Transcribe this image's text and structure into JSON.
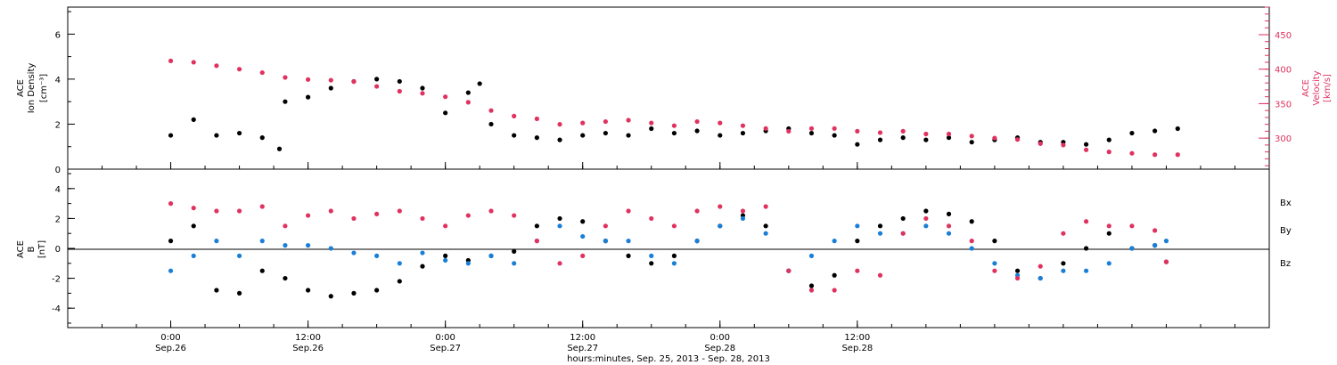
{
  "colors": {
    "density": "#000000",
    "velocity": "#e0325f",
    "bx": "#000000",
    "by": "#1a7fd6",
    "bz": "#e0325f"
  },
  "chart_data": [
    {
      "type": "scatter",
      "panel": "top",
      "ylabel_left": [
        "ACE",
        "Ion Density",
        "[cm⁻³]"
      ],
      "ylabel_right": [
        "ACE",
        "Velocity",
        "[km/s]"
      ],
      "y_left_ticks": [
        "0",
        "2",
        "4",
        "6"
      ],
      "y_right_ticks": [
        "300",
        "350",
        "400",
        "450"
      ],
      "ylim_left": [
        0,
        7.2
      ],
      "ylim_right": [
        255,
        490
      ],
      "series": [
        {
          "key": "density",
          "axis": "left",
          "x": [
            0,
            2,
            4,
            6,
            8,
            9.5,
            10,
            12,
            14,
            16,
            18,
            20,
            22,
            24,
            26,
            27,
            28,
            30,
            32,
            34,
            36,
            38,
            40,
            42,
            44,
            46,
            48,
            50,
            52,
            54,
            56,
            58,
            60,
            62,
            64,
            66,
            68,
            70,
            72,
            74,
            76,
            78,
            80,
            82,
            84,
            86,
            88
          ],
          "y": [
            1.5,
            2.2,
            1.5,
            1.6,
            1.4,
            0.9,
            3.0,
            3.2,
            3.6,
            3.9,
            4.0,
            3.9,
            3.6,
            2.5,
            3.4,
            3.8,
            2.0,
            1.5,
            1.4,
            1.3,
            1.5,
            1.6,
            1.5,
            1.8,
            1.6,
            1.7,
            1.5,
            1.6,
            1.7,
            1.8,
            1.6,
            1.5,
            1.1,
            1.3,
            1.4,
            1.3,
            1.4,
            1.2,
            1.3,
            1.4,
            1.2,
            1.2,
            1.1,
            1.3,
            1.6,
            1.7,
            1.8
          ]
        },
        {
          "key": "velocity",
          "axis": "right",
          "x": [
            0,
            2,
            4,
            6,
            8,
            10,
            12,
            14,
            16,
            18,
            20,
            22,
            24,
            26,
            28,
            30,
            32,
            34,
            36,
            38,
            40,
            42,
            44,
            46,
            48,
            50,
            52,
            54,
            56,
            58,
            60,
            62,
            64,
            66,
            68,
            70,
            72,
            74,
            76,
            78,
            80,
            82,
            84,
            86,
            88
          ],
          "y": [
            412,
            410,
            405,
            400,
            395,
            388,
            385,
            384,
            382,
            375,
            368,
            365,
            360,
            352,
            340,
            332,
            328,
            320,
            322,
            324,
            326,
            322,
            318,
            324,
            322,
            318,
            314,
            310,
            314,
            314,
            310,
            308,
            310,
            306,
            306,
            303,
            300,
            298,
            292,
            290,
            283,
            280,
            278,
            276,
            276
          ]
        }
      ]
    },
    {
      "type": "scatter",
      "panel": "bottom",
      "ylabel_left": [
        "ACE",
        "B",
        "[nT]"
      ],
      "y_left_ticks": [
        "-4",
        "-2",
        "0",
        "2",
        "4"
      ],
      "ylim": [
        -5.3,
        5.3
      ],
      "legend": [
        "Bx",
        "By",
        "Bz"
      ],
      "series": [
        {
          "key": "bx",
          "name": "Bx",
          "x": [
            0,
            2,
            4,
            6,
            8,
            10,
            12,
            14,
            16,
            18,
            20,
            22,
            24,
            26,
            28,
            30,
            32,
            34,
            36,
            38,
            40,
            42,
            44,
            46,
            48,
            50,
            52,
            54,
            56,
            58,
            60,
            62,
            64,
            66,
            68,
            70,
            72,
            74,
            76,
            78,
            80,
            82,
            84,
            86,
            87
          ],
          "y": [
            0.5,
            1.5,
            -2.8,
            -3.0,
            -1.5,
            -2.0,
            -2.8,
            -3.2,
            -3.0,
            -2.8,
            -2.2,
            -1.2,
            -0.5,
            -0.8,
            -0.5,
            -0.2,
            1.5,
            2.0,
            1.8,
            0.5,
            -0.5,
            -1.0,
            -0.5,
            0.5,
            1.5,
            2.2,
            1.5,
            -1.5,
            -2.5,
            -1.8,
            0.5,
            1.5,
            2.0,
            2.5,
            2.3,
            1.8,
            0.5,
            -1.5,
            -2.0,
            -1.0,
            0.0,
            1.0,
            0.0,
            0.2,
            -0.9
          ]
        },
        {
          "key": "by",
          "name": "By",
          "x": [
            0,
            2,
            4,
            6,
            8,
            10,
            12,
            14,
            16,
            18,
            20,
            22,
            24,
            26,
            28,
            30,
            32,
            34,
            36,
            38,
            40,
            42,
            44,
            46,
            48,
            50,
            52,
            54,
            56,
            58,
            60,
            62,
            64,
            66,
            68,
            70,
            72,
            74,
            76,
            78,
            80,
            82,
            84,
            86,
            87
          ],
          "y": [
            -1.5,
            -0.5,
            0.5,
            -0.5,
            0.5,
            0.2,
            0.2,
            0.0,
            -0.3,
            -0.5,
            -1.0,
            -0.3,
            -0.8,
            -1.0,
            -0.5,
            -1.0,
            0.5,
            1.5,
            0.8,
            0.5,
            0.5,
            -0.5,
            -1.0,
            0.5,
            1.5,
            2.0,
            1.0,
            -1.5,
            -0.5,
            0.5,
            1.5,
            1.0,
            1.0,
            1.5,
            1.0,
            0.0,
            -1.0,
            -1.8,
            -2.0,
            -1.5,
            -1.5,
            -1.0,
            0.0,
            0.2,
            0.5
          ]
        },
        {
          "key": "bz",
          "name": "Bz",
          "x": [
            0,
            2,
            4,
            6,
            8,
            10,
            12,
            14,
            16,
            18,
            20,
            22,
            24,
            26,
            28,
            30,
            32,
            34,
            36,
            38,
            40,
            42,
            44,
            46,
            48,
            50,
            52,
            54,
            56,
            58,
            60,
            62,
            64,
            66,
            68,
            70,
            72,
            74,
            76,
            78,
            80,
            82,
            84,
            86,
            87
          ],
          "y": [
            3.0,
            2.7,
            2.5,
            2.5,
            2.8,
            1.5,
            2.2,
            2.5,
            2.0,
            2.3,
            2.5,
            2.0,
            1.5,
            2.2,
            2.5,
            2.2,
            0.5,
            -1.0,
            -0.5,
            1.5,
            2.5,
            2.0,
            1.5,
            2.5,
            2.8,
            2.5,
            2.8,
            -1.5,
            -2.8,
            -2.8,
            -1.5,
            -1.8,
            1.0,
            2.0,
            1.5,
            0.5,
            -1.5,
            -2.0,
            -1.2,
            1.0,
            1.8,
            1.5,
            1.5,
            1.2,
            -0.9
          ]
        }
      ]
    }
  ],
  "x_axis": {
    "xlim": [
      -9,
      96
    ],
    "ticks": [
      {
        "x": 0,
        "time": "0:00",
        "date": "Sep.26"
      },
      {
        "x": 12,
        "time": "12:00",
        "date": "Sep.26"
      },
      {
        "x": 24,
        "time": "0:00",
        "date": "Sep.27"
      },
      {
        "x": 36,
        "time": "12:00",
        "date": "Sep.27"
      },
      {
        "x": 48,
        "time": "0:00",
        "date": "Sep.28"
      },
      {
        "x": 60,
        "time": "12:00",
        "date": "Sep.28"
      }
    ],
    "title": "hours:minutes, Sep. 25, 2013 - Sep. 28, 2013"
  }
}
